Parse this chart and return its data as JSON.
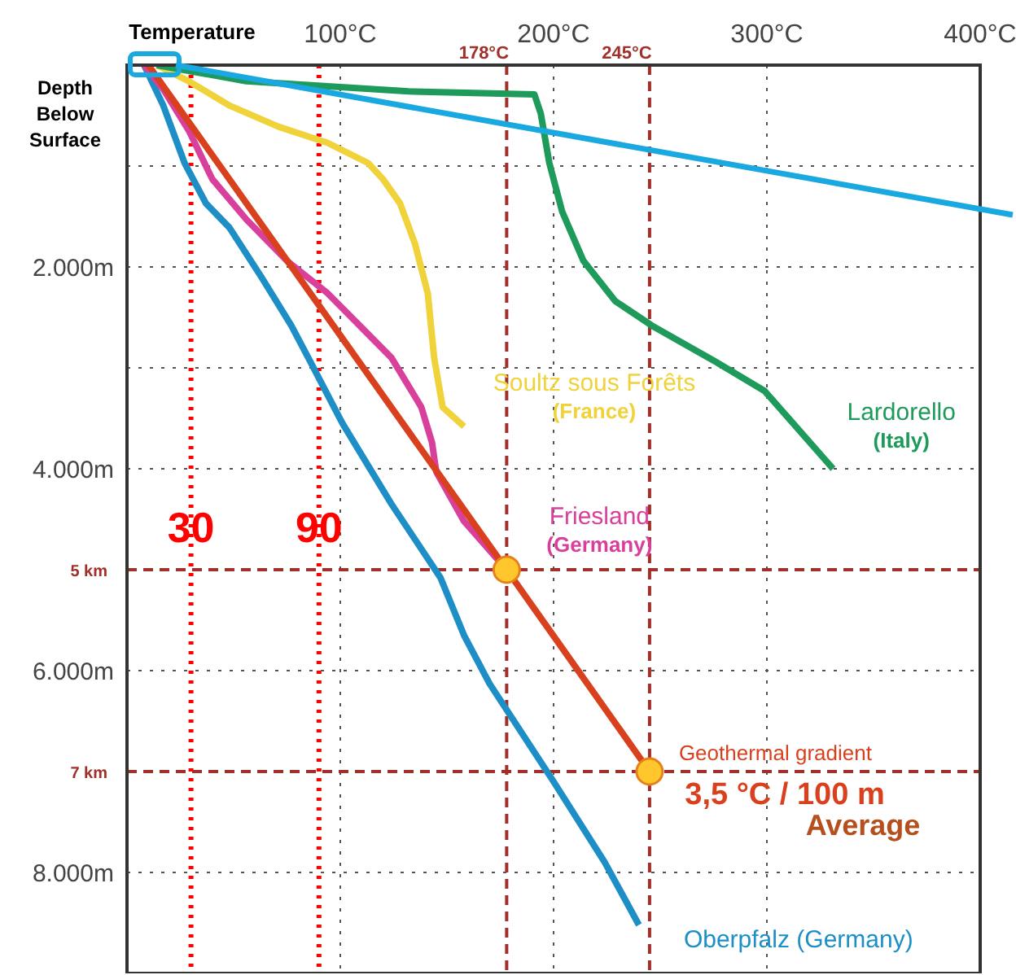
{
  "chart_data": {
    "type": "line",
    "xlabel": "Temperature",
    "ylabel": "Depth Below Surface",
    "xlim": [
      0,
      400
    ],
    "xticks": [
      {
        "value": 100,
        "label": "100°C"
      },
      {
        "value": 200,
        "label": "200°C"
      },
      {
        "value": 300,
        "label": "300°C"
      },
      {
        "value": 400,
        "label": "400°C"
      }
    ],
    "ylim": [
      9000,
      0
    ],
    "yticks": [
      {
        "value": 1000,
        "label": null
      },
      {
        "value": 2000,
        "label": "2.000m"
      },
      {
        "value": 3000,
        "label": null
      },
      {
        "value": 4000,
        "label": "4.000m"
      },
      {
        "value": 6000,
        "label": "6.000m"
      },
      {
        "value": 8000,
        "label": "8.000m"
      }
    ],
    "grid": true,
    "series": [
      {
        "name": "Oberpfalz (Germany)",
        "color": "#1e8fc6",
        "x": [
          8,
          17,
          27,
          37,
          48,
          63,
          77,
          86,
          101,
          124,
          147,
          158,
          170,
          200,
          224,
          240
        ],
        "values": [
          0,
          400,
          970,
          1370,
          1610,
          2100,
          2580,
          2940,
          3550,
          4350,
          5080,
          5650,
          6130,
          7100,
          7900,
          8520
        ]
      },
      {
        "name": "Friesland (Germany)",
        "color": "#d8409c",
        "x": [
          8,
          17,
          29,
          40,
          56,
          75,
          94,
          109,
          124,
          138,
          143,
          145,
          158,
          178
        ],
        "values": [
          0,
          240,
          650,
          1130,
          1530,
          1940,
          2260,
          2580,
          2900,
          3390,
          3740,
          4030,
          4520,
          5000
        ]
      },
      {
        "name": "Soultz sous Forêts (France)",
        "color": "#f0d23a",
        "x": [
          14,
          29,
          48,
          71,
          94,
          113,
          120,
          128,
          135,
          141,
          144,
          148,
          158
        ],
        "values": [
          0,
          160,
          400,
          610,
          770,
          970,
          1130,
          1370,
          1770,
          2260,
          2900,
          3390,
          3580
        ]
      },
      {
        "name": "Lardorello (Italy)",
        "color": "#1e9a5a",
        "x": [
          14,
          56,
          132,
          191,
          194,
          198,
          204,
          214,
          229,
          246,
          276,
          299,
          331
        ],
        "values": [
          0,
          160,
          260,
          290,
          480,
          970,
          1450,
          1940,
          2340,
          2580,
          2940,
          3230,
          4000
        ]
      },
      {
        "name": "Geothermal gradient",
        "color": "#d9401e",
        "x": [
          10,
          178,
          245
        ],
        "values": [
          0,
          5000,
          7000
        ]
      },
      {
        "type": "scatter",
        "color": "#ffc72c",
        "x": [
          178,
          245
        ],
        "values": [
          5000,
          7000
        ]
      }
    ],
    "ref_lines": [
      {
        "axis": "x",
        "value": 30,
        "label": "30",
        "color": "#ff0000",
        "line_style": "dotted"
      },
      {
        "axis": "x",
        "value": 90,
        "label": "90",
        "color": "#ff0000",
        "line_style": "dotted"
      },
      {
        "axis": "x",
        "value": 178,
        "label": "178°C",
        "color": "#a0302a",
        "line_style": "dashed"
      },
      {
        "axis": "x",
        "value": 245,
        "label": "245°C",
        "color": "#a0302a",
        "line_style": "dashed"
      },
      {
        "axis": "y",
        "value": 5000,
        "label": "5 km",
        "color": "#a0302a",
        "line_style": "dashed"
      },
      {
        "axis": "y",
        "value": 7000,
        "label": "7 km",
        "color": "#a0302a",
        "line_style": "dashed"
      }
    ],
    "annotations": [
      "3,5 °C / 100 m",
      "Average"
    ]
  }
}
